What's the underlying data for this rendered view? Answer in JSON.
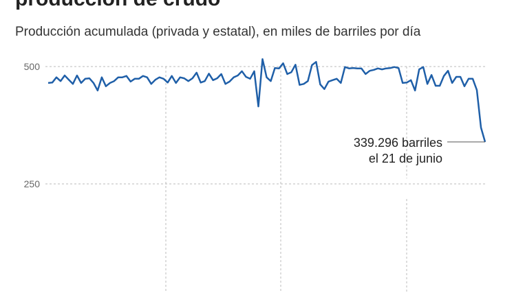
{
  "chart_data": {
    "type": "line",
    "title": "producción de crudo",
    "subtitle": "Producción acumulada (privada y estatal), en miles de barriles por día",
    "ylim": [
      0,
      550
    ],
    "yticks": [
      250,
      500
    ],
    "grid": true,
    "series": [
      {
        "name": "Producción",
        "color": "#1f5fa8",
        "values": [
          465,
          466,
          477,
          469,
          481,
          472,
          463,
          481,
          465,
          474,
          475,
          465,
          449,
          477,
          458,
          465,
          469,
          477,
          477,
          480,
          468,
          474,
          474,
          480,
          477,
          463,
          472,
          477,
          474,
          466,
          480,
          465,
          477,
          475,
          469,
          475,
          487,
          466,
          469,
          485,
          471,
          475,
          484,
          463,
          468,
          477,
          481,
          490,
          478,
          474,
          490,
          415,
          516,
          477,
          469,
          497,
          496,
          507,
          484,
          488,
          504,
          461,
          463,
          469,
          503,
          510,
          462,
          452,
          468,
          471,
          474,
          465,
          499,
          496,
          497,
          496,
          496,
          484,
          491,
          493,
          496,
          494,
          496,
          497,
          499,
          497,
          465,
          466,
          471,
          449,
          494,
          499,
          463,
          482,
          459,
          459,
          480,
          491,
          465,
          478,
          478,
          458,
          474,
          474,
          450,
          370,
          339.296
        ]
      }
    ],
    "annotation": [
      "339.296 barriles",
      "el 21 de junio"
    ]
  }
}
